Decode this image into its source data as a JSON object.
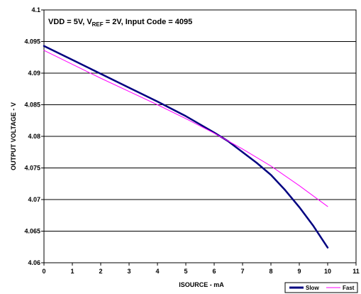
{
  "chart_data": {
    "type": "line",
    "xlabel": "ISOURCE - mA",
    "ylabel": "OUTPUT VOLTAGE - V",
    "annotation": {
      "prefix": "VDD = 5V, V",
      "sub": "REF",
      "suffix": " = 2V, Input Code = 4095"
    },
    "xlim": [
      0,
      11
    ],
    "ylim": [
      4.06,
      4.1
    ],
    "xticks": [
      "0",
      "1",
      "2",
      "3",
      "4",
      "5",
      "6",
      "7",
      "8",
      "9",
      "10",
      "11"
    ],
    "yticks": [
      "4.06",
      "4.065",
      "4.07",
      "4.075",
      "4.08",
      "4.085",
      "4.09",
      "4.095",
      "4.1"
    ],
    "grid": "horizontal",
    "legend_position": "bottom-right",
    "series": [
      {
        "name": "Slow",
        "color": "#000080",
        "x": [
          0,
          1,
          2,
          3,
          4,
          5,
          6,
          6.5,
          7,
          7.5,
          8,
          8.5,
          9,
          9.5,
          10
        ],
        "y": [
          4.0943,
          4.0921,
          4.0899,
          4.0877,
          4.0855,
          4.0832,
          4.0806,
          4.0792,
          4.0775,
          4.0758,
          4.0739,
          4.0715,
          4.0688,
          4.0658,
          4.0624
        ]
      },
      {
        "name": "Fast",
        "color": "#ff00ff",
        "x": [
          0,
          1,
          2,
          3,
          4,
          5,
          6,
          7,
          8,
          9,
          10
        ],
        "y": [
          4.0936,
          4.0914,
          4.0892,
          4.0871,
          4.085,
          4.0828,
          4.0805,
          4.078,
          4.0753,
          4.0722,
          4.0689
        ]
      }
    ]
  }
}
